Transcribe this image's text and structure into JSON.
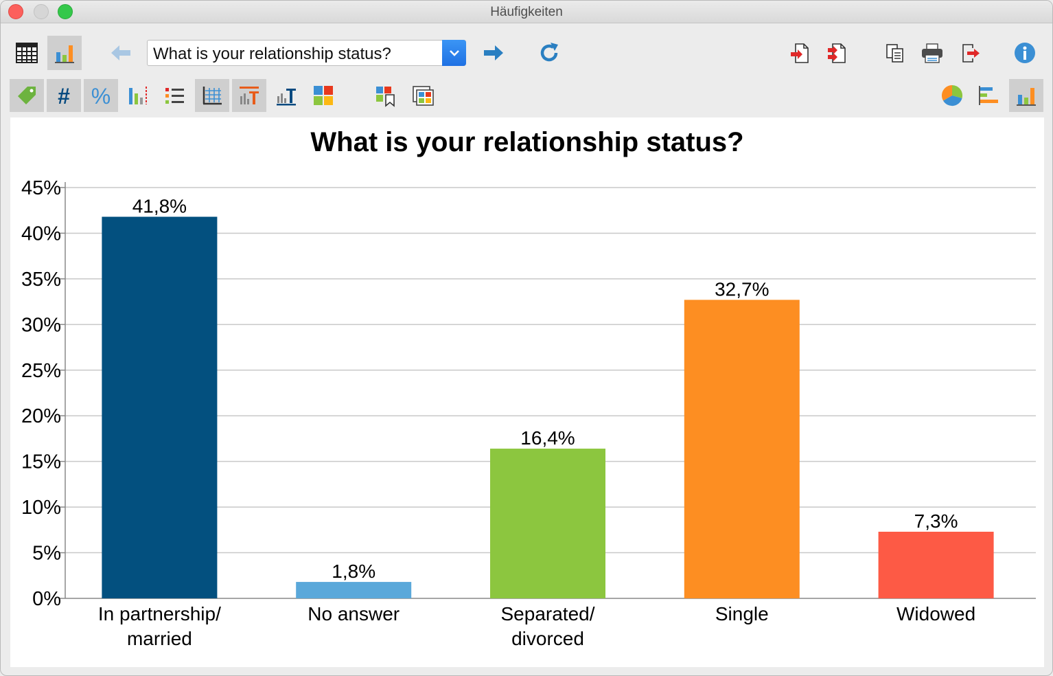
{
  "window": {
    "title": "Häufigkeiten"
  },
  "toolbar": {
    "question_select": {
      "value": "What is your relationship status?"
    }
  },
  "colors": {
    "bar_colors": [
      "#03507f",
      "#5aa8da",
      "#8cc63f",
      "#fd8e22",
      "#fd5a45"
    ],
    "accent_blue": "#2a7fc1",
    "accent_red": "#e02828"
  },
  "icons": {
    "row1_left": [
      "table-view-icon",
      "chart-view-icon",
      "back-arrow-icon",
      "forward-arrow-icon",
      "refresh-icon"
    ],
    "row1_right": [
      "export-icon",
      "export-all-icon",
      "copy-icon",
      "print-icon",
      "exit-icon",
      "info-icon"
    ],
    "row2_left": [
      "tag-icon",
      "hash-icon",
      "percent-icon",
      "missing-values-chart-icon",
      "list-icon",
      "grid-icon",
      "title-chart-icon",
      "axis-label-icon",
      "colors-icon",
      "color-palette-icon",
      "frame-colors-icon"
    ],
    "row2_right": [
      "pie-chart-icon",
      "horizontal-bar-chart-icon",
      "vertical-bar-chart-icon"
    ]
  },
  "chart_data": {
    "type": "bar",
    "title": "What is your relationship status?",
    "categories": [
      "In partnership/ married",
      "No answer",
      "Separated/ divorced",
      "Single",
      "Widowed"
    ],
    "category_lines": [
      [
        "In partnership/",
        "married"
      ],
      [
        "No answer"
      ],
      [
        "Separated/",
        "divorced"
      ],
      [
        "Single"
      ],
      [
        "Widowed"
      ]
    ],
    "values": [
      41.8,
      1.8,
      16.4,
      32.7,
      7.3
    ],
    "value_labels": [
      "41,8%",
      "1,8%",
      "16,4%",
      "32,7%",
      "7,3%"
    ],
    "ylim": [
      0,
      45
    ],
    "yticks": [
      "0%",
      "5%",
      "10%",
      "15%",
      "20%",
      "25%",
      "30%",
      "35%",
      "40%",
      "45%"
    ],
    "xlabel": "",
    "ylabel": "",
    "grid": true,
    "legend": "none"
  }
}
